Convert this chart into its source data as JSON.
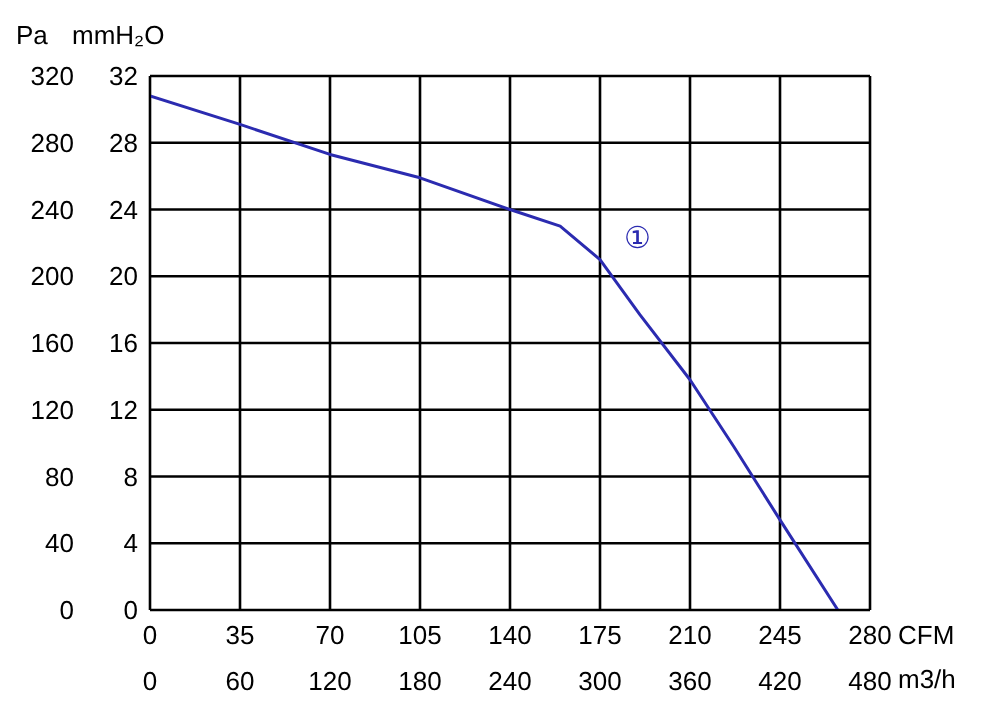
{
  "chart_data": {
    "type": "line",
    "xlabel": "CFM",
    "x2label": "m3/h",
    "ylabel": "Pa",
    "y2label": "mmH₂O",
    "xlim": [
      0,
      280
    ],
    "xticks": [
      0,
      35,
      70,
      105,
      140,
      175,
      210,
      245,
      280
    ],
    "x2lim": [
      0,
      480
    ],
    "x2ticks": [
      0,
      60,
      120,
      180,
      240,
      300,
      360,
      420,
      480
    ],
    "ylim": [
      0,
      320
    ],
    "yticks": [
      0,
      40,
      80,
      120,
      160,
      200,
      240,
      280,
      320
    ],
    "y2lim": [
      0,
      32
    ],
    "y2ticks": [
      0,
      4,
      8,
      12,
      16,
      20,
      24,
      28,
      32
    ],
    "grid": true,
    "marker": "none",
    "series": [
      {
        "color": "#2b2bb0",
        "x": [
          0,
          35,
          70,
          105,
          140,
          159.5,
          175,
          190.5,
          210,
          227,
          245,
          267.5
        ],
        "values": [
          308,
          291,
          273,
          259,
          240,
          230,
          210,
          177,
          138,
          98,
          54,
          0
        ]
      }
    ],
    "annotations": [
      "①"
    ]
  }
}
